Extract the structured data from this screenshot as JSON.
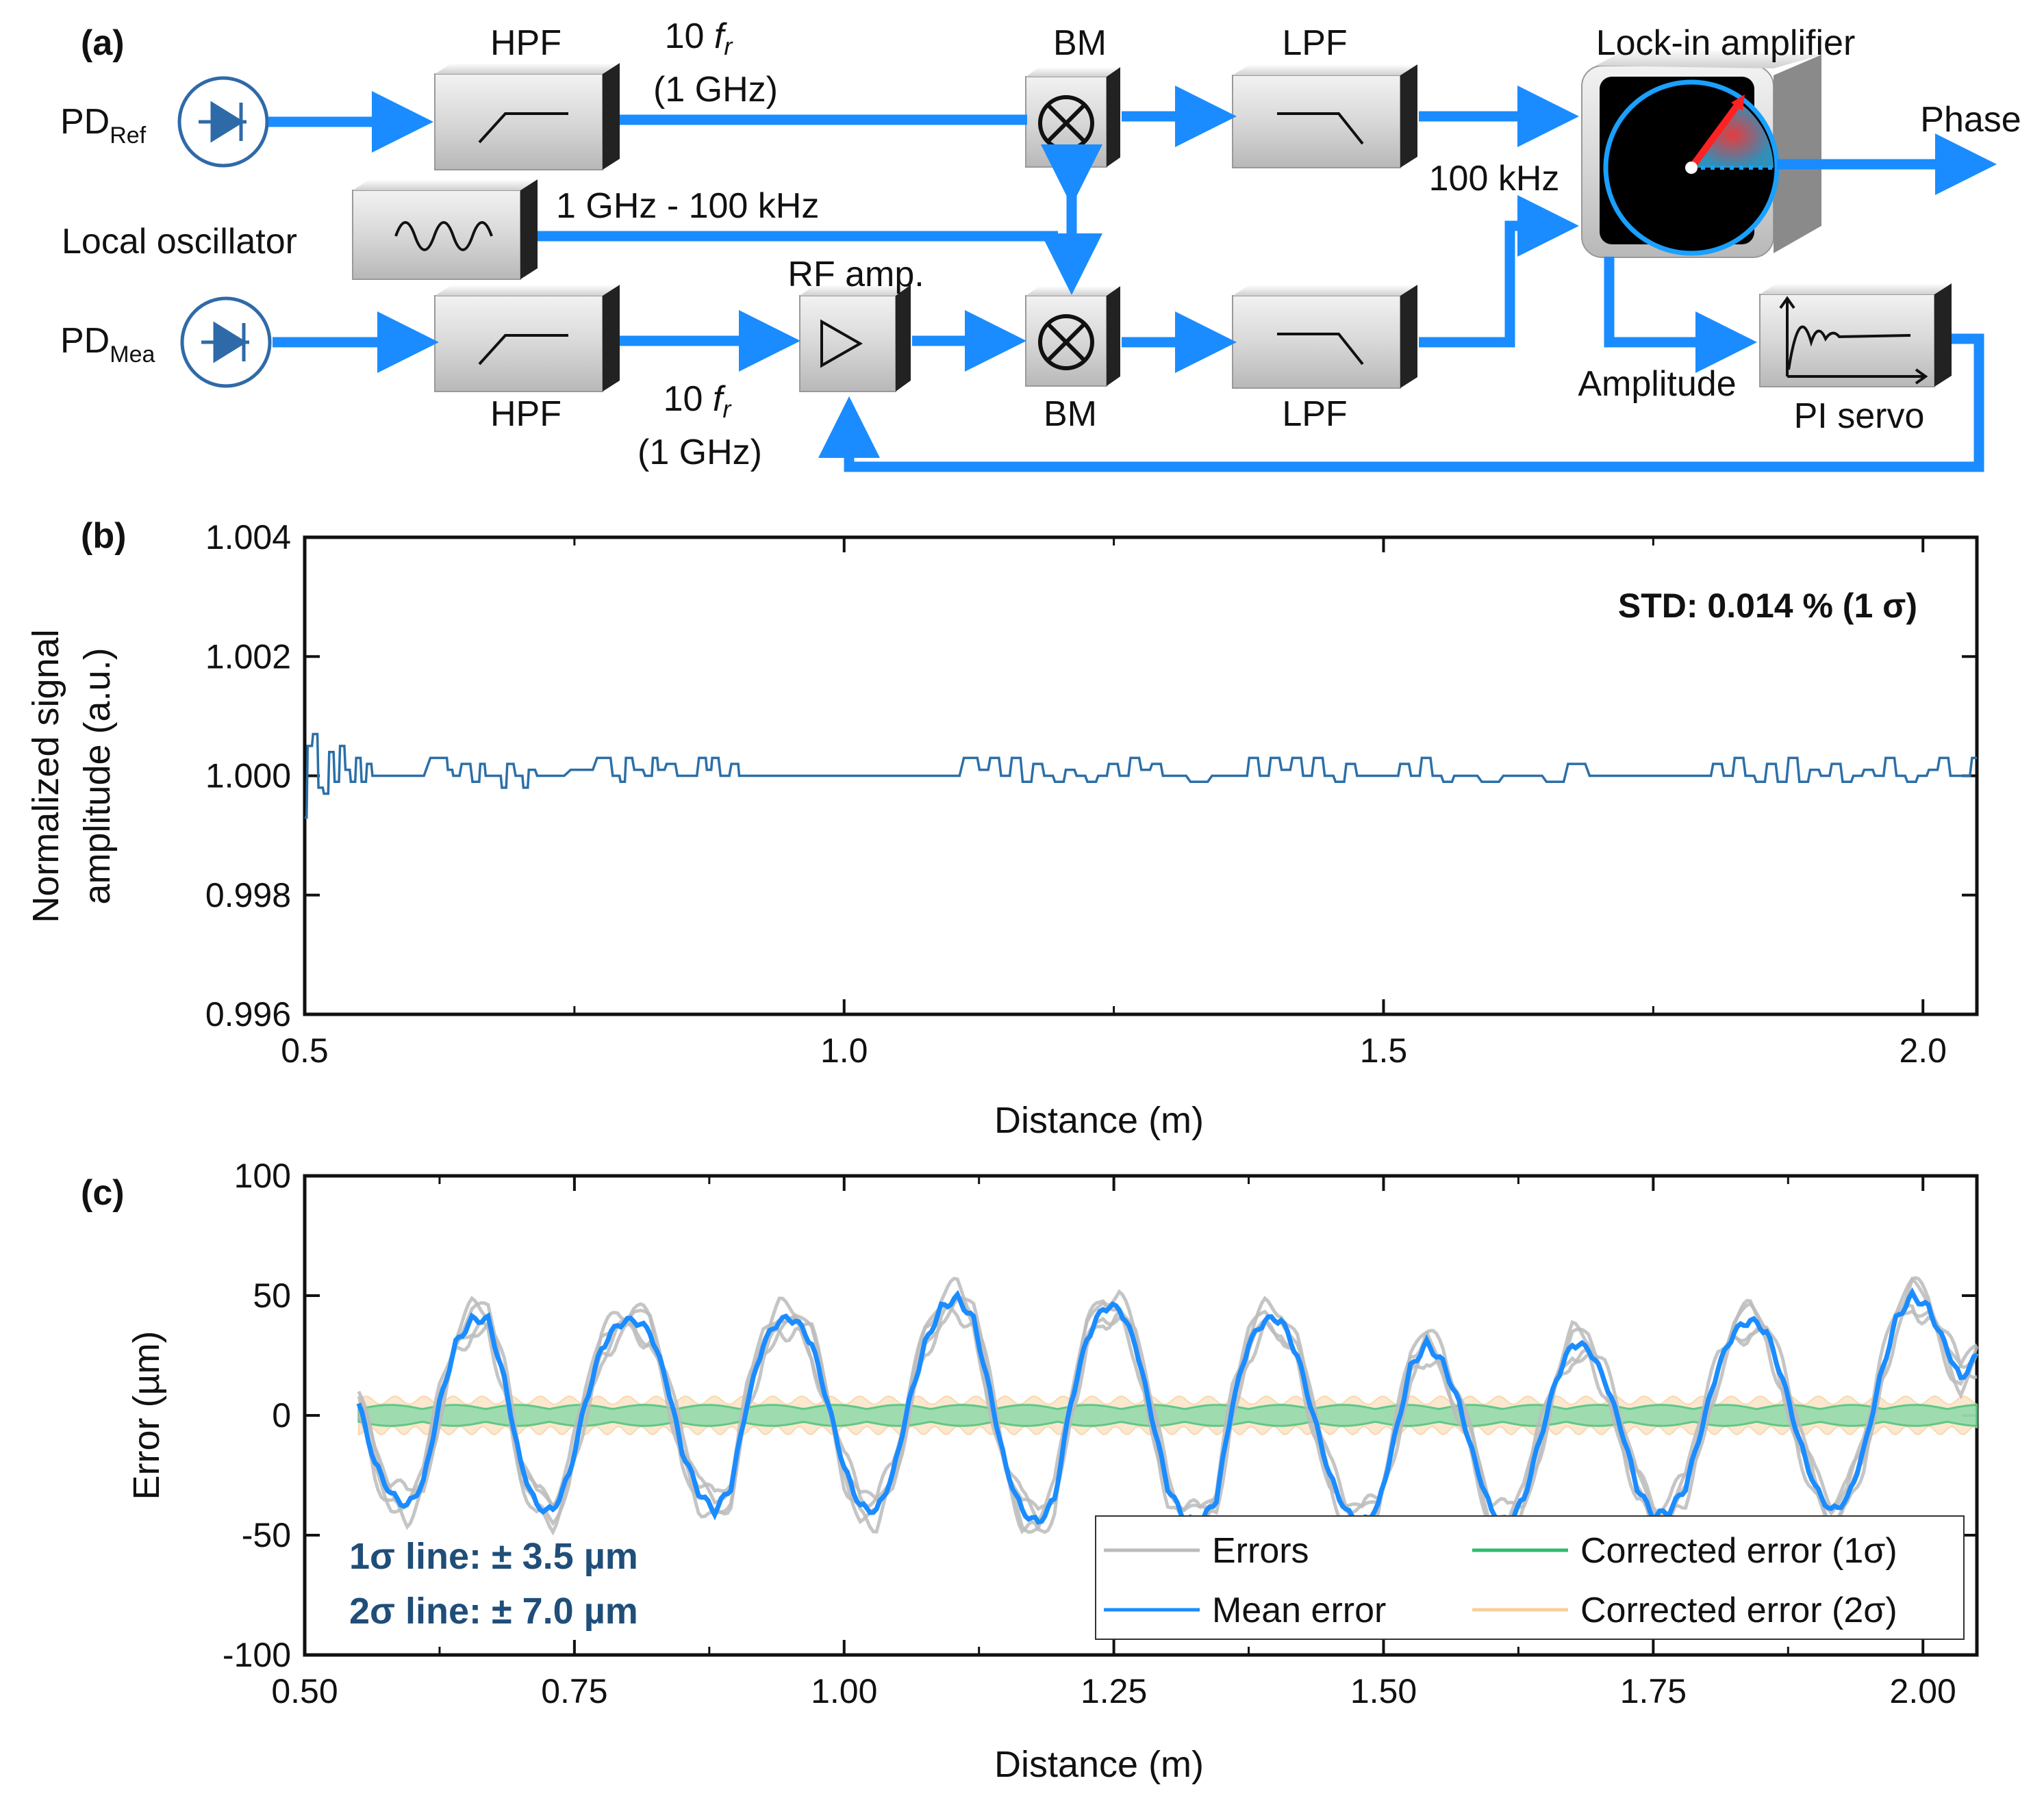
{
  "diagram": {
    "panel_label": "(a)",
    "pd_ref": {
      "main": "PD",
      "sub": "Ref"
    },
    "pd_mea": {
      "main": "PD",
      "sub": "Mea"
    },
    "hpf_top": "HPF",
    "hpf_bottom": "HPF",
    "freq_top_line1_num": "10",
    "freq_top_line1_f": "f",
    "freq_top_line1_sub": "r",
    "freq_top_line2": "(1 GHz)",
    "freq_bottom_line1_num": "10",
    "freq_bottom_line1_f": "f",
    "freq_bottom_line1_sub": "r",
    "freq_bottom_line2": "(1 GHz)",
    "local_oscillator": "Local oscillator",
    "lo_freq": "1 GHz - 100 kHz",
    "rf_amp": "RF amp.",
    "bm_top": "BM",
    "bm_bottom": "BM",
    "lpf_top": "LPF",
    "lpf_bottom": "LPF",
    "lockin": "Lock-in amplifier",
    "if_freq": "100 kHz",
    "phase": "Phase",
    "amplitude": "Amplitude",
    "pi_servo": "PI servo",
    "colors": {
      "arrow": "#1a8cff",
      "pd": "#2f6aa8",
      "box_face": "#d6d6d6",
      "box_side": "#333333"
    }
  },
  "chart_data": [
    {
      "panel_label": "(b)",
      "type": "line",
      "title": "",
      "xlabel": "Distance (m)",
      "ylabel_line1": "Normalized signal",
      "ylabel_line2": "amplitude (a.u.)",
      "xlim": [
        0.5,
        2.05
      ],
      "ylim": [
        0.996,
        1.004
      ],
      "xticks": [
        0.5,
        1.0,
        1.5,
        2.0
      ],
      "xtick_labels": [
        "0.5",
        "1.0",
        "1.5",
        "2.0"
      ],
      "yticks": [
        0.996,
        0.998,
        1.0,
        1.002,
        1.004
      ],
      "ytick_labels": [
        "0.996",
        "0.998",
        "1.000",
        "1.002",
        "1.004"
      ],
      "annotation": "STD: 0.014 % (1 σ)",
      "series": [
        {
          "name": "Normalized amplitude",
          "color": "#2b6fa8",
          "x": [
            0.5,
            0.505,
            0.51,
            0.515,
            0.52,
            0.525,
            0.53,
            0.535,
            0.54,
            0.545,
            0.55,
            0.555,
            0.56,
            0.565,
            0.57,
            0.6,
            0.63,
            0.635,
            0.64,
            0.65,
            0.66,
            0.665,
            0.67,
            0.68,
            0.685,
            0.69,
            0.7,
            0.705,
            0.71,
            0.72,
            0.73,
            0.76,
            0.78,
            0.79,
            0.795,
            0.8,
            0.81,
            0.82,
            0.825,
            0.83,
            0.84,
            0.85,
            0.86,
            0.87,
            0.875,
            0.88,
            0.89,
            0.9,
            0.905,
            0.91,
            0.92,
            0.96,
            1.0,
            1.05,
            1.1,
            1.12,
            1.13,
            1.14,
            1.15,
            1.16,
            1.17,
            1.18,
            1.19,
            1.2,
            1.21,
            1.22,
            1.23,
            1.24,
            1.25,
            1.26,
            1.27,
            1.28,
            1.29,
            1.3,
            1.31,
            1.33,
            1.35,
            1.37,
            1.38,
            1.39,
            1.4,
            1.41,
            1.42,
            1.43,
            1.44,
            1.45,
            1.46,
            1.47,
            1.48,
            1.49,
            1.5,
            1.51,
            1.52,
            1.53,
            1.54,
            1.55,
            1.56,
            1.57,
            1.58,
            1.6,
            1.62,
            1.64,
            1.66,
            1.68,
            1.7,
            1.72,
            1.74,
            1.76,
            1.78,
            1.8,
            1.81,
            1.82,
            1.83,
            1.84,
            1.85,
            1.86,
            1.87,
            1.88,
            1.89,
            1.9,
            1.91,
            1.92,
            1.93,
            1.94,
            1.95,
            1.96,
            1.97,
            1.98,
            1.99,
            2.0,
            2.01,
            2.02,
            2.03,
            2.04,
            2.05
          ],
          "y": [
            0.9993,
            1.0005,
            1.0007,
            0.9998,
            0.9997,
            1.0004,
            0.9999,
            1.0005,
            1.0001,
            0.9999,
            1.0003,
            0.9999,
            1.0002,
            1.0,
            1.0,
            1.0,
            1.0003,
            1.0001,
            1.0,
            1.0002,
            0.9999,
            1.0002,
            1.0,
            1.0,
            0.9998,
            1.0002,
            1.0,
            0.9998,
            1.0001,
            1.0,
            1.0,
            1.0001,
            1.0003,
            1.0,
            0.9999,
            1.0003,
            1.0001,
            1.0,
            1.0003,
            1.0001,
            1.0002,
            1.0,
            1.0,
            1.0003,
            1.0001,
            1.0003,
            1.0,
            1.0002,
            1.0,
            1.0,
            1.0,
            1.0,
            1.0,
            1.0,
            1.0,
            1.0003,
            1.0001,
            1.0003,
            1.0,
            1.0003,
            0.9999,
            1.0002,
            1.0,
            0.9999,
            1.0001,
            1.0,
            0.9999,
            1.0,
            1.0002,
            1.0,
            1.0003,
            1.0001,
            1.0002,
            1.0,
            1.0,
            0.9999,
            1.0,
            1.0,
            1.0003,
            1.0,
            1.0003,
            1.0001,
            1.0003,
            1.0,
            1.0003,
            1.0,
            0.9999,
            1.0002,
            1.0,
            1.0,
            1.0,
            1.0,
            1.0002,
            1.0,
            1.0003,
            1.0,
            0.9999,
            1.0,
            1.0,
            0.9999,
            1.0,
            1.0,
            0.9999,
            1.0002,
            1.0,
            1.0,
            1.0,
            1.0,
            1.0,
            1.0,
            1.0002,
            1.0,
            1.0003,
            1.0,
            0.9999,
            1.0002,
            0.9999,
            1.0003,
            0.9999,
            1.0001,
            1.0,
            1.0002,
            0.9999,
            1.0,
            1.0001,
            1.0,
            1.0003,
            1.0,
            0.9999,
            1.0,
            1.0001,
            1.0003,
            1.0,
            1.0,
            1.0003
          ]
        }
      ]
    },
    {
      "panel_label": "(c)",
      "type": "line",
      "title": "",
      "xlabel": "Distance (m)",
      "ylabel": "Error (µm)",
      "xlim": [
        0.5,
        2.05
      ],
      "ylim": [
        -100,
        100
      ],
      "xticks": [
        0.5,
        0.75,
        1.0,
        1.25,
        1.5,
        1.75,
        2.0
      ],
      "xtick_labels": [
        "0.50",
        "0.75",
        "1.00",
        "1.25",
        "1.50",
        "1.75",
        "2.00"
      ],
      "yticks": [
        -100,
        -50,
        0,
        50,
        100
      ],
      "ytick_labels": [
        "-100",
        "-50",
        "0",
        "50",
        "100"
      ],
      "annotations": [
        "1σ line: ± 3.5 µm",
        "2σ line: ± 7.0 µm"
      ],
      "legend_position": "bottom-right",
      "legend": [
        {
          "label": "Errors",
          "color": "#bbbbbb"
        },
        {
          "label": "Mean error",
          "color": "#1a8cff"
        },
        {
          "label": "Corrected error (1σ)",
          "color": "#2ebd6e"
        },
        {
          "label": "Corrected error (2σ)",
          "color": "#f8cf9c"
        }
      ],
      "band_1sigma": 3.5,
      "band_2sigma": 7.0,
      "series": [
        {
          "name": "Mean error",
          "color": "#1a8cff",
          "x": [
            0.55,
            0.565,
            0.58,
            0.595,
            0.61,
            0.625,
            0.64,
            0.655,
            0.67,
            0.685,
            0.7,
            0.715,
            0.73,
            0.745,
            0.76,
            0.775,
            0.79,
            0.805,
            0.82,
            0.835,
            0.85,
            0.865,
            0.88,
            0.895,
            0.91,
            0.925,
            0.94,
            0.955,
            0.97,
            0.985,
            1.0,
            1.015,
            1.03,
            1.045,
            1.06,
            1.075,
            1.09,
            1.105,
            1.12,
            1.135,
            1.15,
            1.165,
            1.18,
            1.195,
            1.21,
            1.225,
            1.24,
            1.255,
            1.27,
            1.285,
            1.3,
            1.315,
            1.33,
            1.345,
            1.36,
            1.375,
            1.39,
            1.405,
            1.42,
            1.435,
            1.45,
            1.465,
            1.48,
            1.495,
            1.51,
            1.525,
            1.54,
            1.555,
            1.57,
            1.585,
            1.6,
            1.615,
            1.63,
            1.645,
            1.66,
            1.675,
            1.69,
            1.705,
            1.72,
            1.735,
            1.75,
            1.765,
            1.78,
            1.795,
            1.81,
            1.825,
            1.84,
            1.855,
            1.87,
            1.885,
            1.9,
            1.915,
            1.93,
            1.945,
            1.96,
            1.975,
            1.99,
            2.005,
            2.02,
            2.035,
            2.05
          ],
          "y": [
            5,
            -20,
            -33,
            -38,
            -28,
            5,
            30,
            40,
            40,
            15,
            -20,
            -38,
            -40,
            -25,
            5,
            28,
            38,
            40,
            35,
            15,
            -15,
            -32,
            -40,
            -30,
            5,
            30,
            40,
            40,
            30,
            5,
            -22,
            -38,
            -40,
            -25,
            5,
            30,
            45,
            49,
            40,
            10,
            -22,
            -40,
            -45,
            -35,
            5,
            32,
            45,
            45,
            30,
            0,
            -30,
            -43,
            -45,
            -35,
            5,
            30,
            40,
            40,
            25,
            0,
            -25,
            -40,
            -45,
            -38,
            -10,
            20,
            30,
            22,
            5,
            -20,
            -40,
            -45,
            -35,
            -10,
            15,
            30,
            28,
            15,
            -5,
            -30,
            -42,
            -40,
            -30,
            -5,
            20,
            35,
            40,
            35,
            15,
            -10,
            -30,
            -40,
            -35,
            -15,
            15,
            40,
            50,
            45,
            30,
            15,
            25
          ],
          "wobble_amp": 3.0
        },
        {
          "name": "Errors",
          "color": "#bbbbbb",
          "offsets": [
            3,
            -3,
            5,
            -5
          ],
          "spread": 4
        },
        {
          "name": "Corrected error",
          "color": "#2ebd6e",
          "amplitude": 3.5
        }
      ]
    }
  ]
}
